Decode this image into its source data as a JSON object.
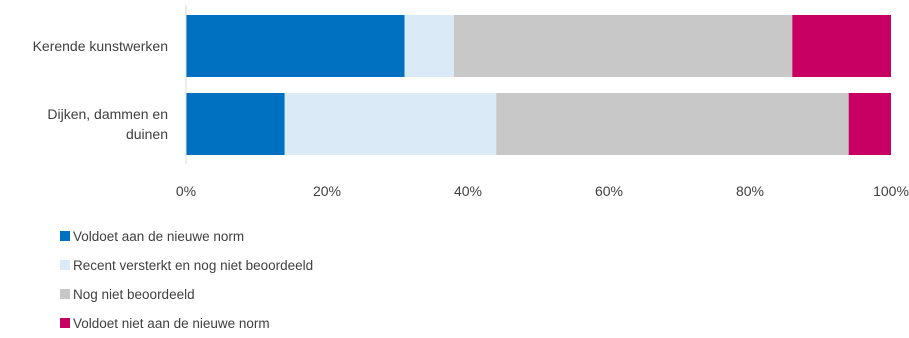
{
  "chart_data": {
    "type": "bar",
    "orientation": "horizontal",
    "stacked": true,
    "title": "",
    "xlabel": "",
    "ylabel": "",
    "categories": [
      [
        "Kerende kunstwerken"
      ],
      [
        "Dijken, dammen en",
        "duinen"
      ]
    ],
    "xlim": [
      0,
      100
    ],
    "ticks": [
      "0%",
      "20%",
      "40%",
      "60%",
      "80%",
      "100%"
    ],
    "series": [
      {
        "name": "Voldoet aan de nieuwe norm",
        "color": "#0070C0",
        "values": [
          31,
          14
        ]
      },
      {
        "name": "Recent versterkt en nog niet beoordeeld",
        "color": "#DAEAF7",
        "values": [
          7,
          30
        ]
      },
      {
        "name": "Nog niet beoordeeld",
        "color": "#C8C8C8",
        "values": [
          48,
          50
        ]
      },
      {
        "name": "Voldoet niet aan de nieuwe norm",
        "color": "#C80064",
        "values": [
          14,
          6
        ]
      }
    ],
    "grid": false,
    "legend_position": "bottom-left"
  }
}
